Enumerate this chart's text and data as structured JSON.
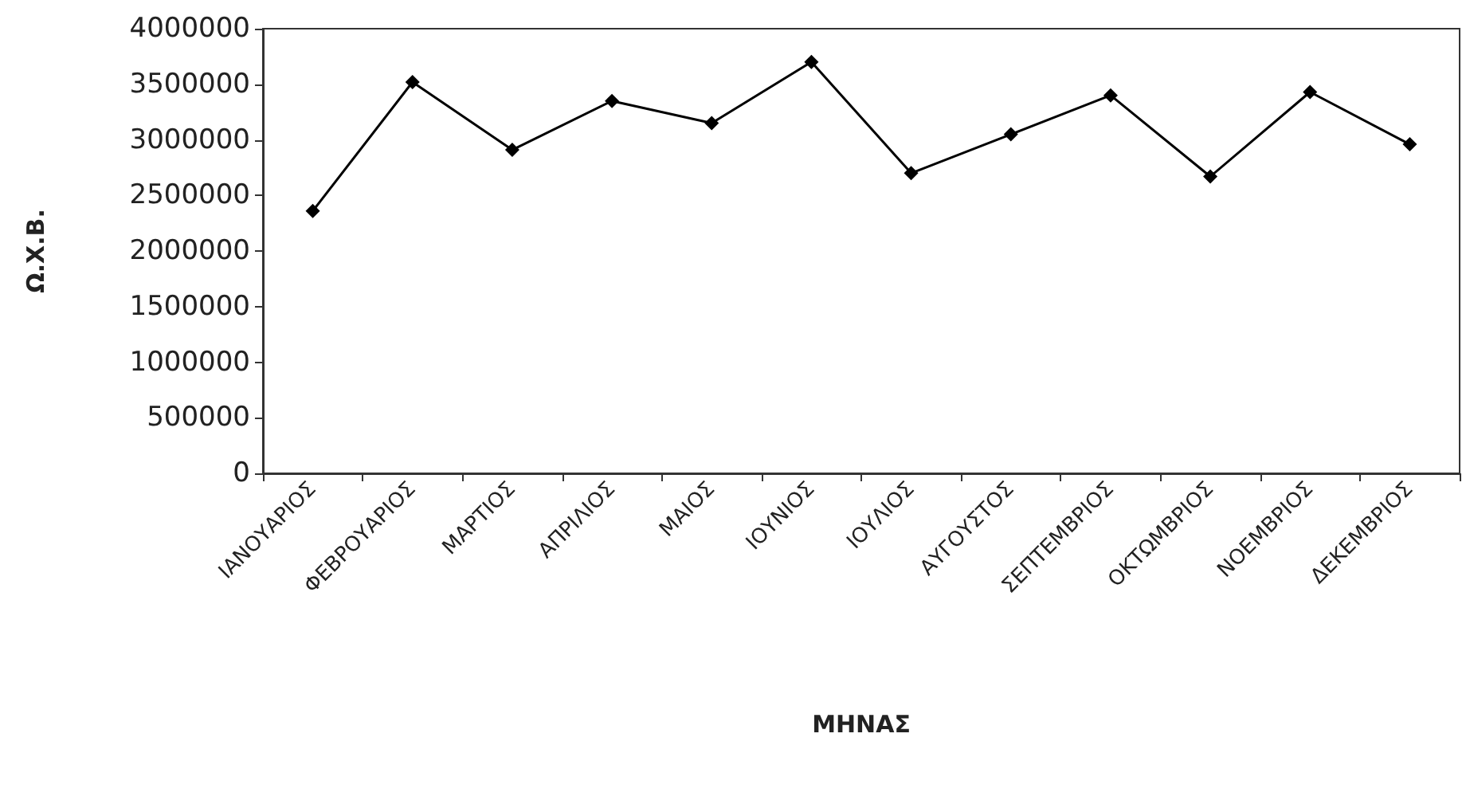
{
  "chart_data": {
    "type": "line",
    "xlabel": "ΜΗΝΑΣ",
    "ylabel": "Ω.Χ.Β.",
    "categories": [
      "ΙΑΝΟΥΑΡΙΟΣ",
      "ΦΕΒΡΟΥΑΡΙΟΣ",
      "ΜΑΡΤΙΟΣ",
      "ΑΠΡΙΛΙΟΣ",
      "ΜΑΙΟΣ",
      "ΙΟΥΝΙΟΣ",
      "ΙΟΥΛΙΟΣ",
      "ΑΥΓΟΥΣΤΟΣ",
      "ΣΕΠΤΕΜΒΡΙΟΣ",
      "ΟΚΤΩΜΒΡΙΟΣ",
      "ΝΟΕΜΒΡΙΟΣ",
      "ΔΕΚΕΜΒΡΙΟΣ"
    ],
    "series": [
      {
        "color": "#000000",
        "values": [
          2360000,
          3520000,
          2910000,
          3350000,
          3150000,
          3700000,
          2700000,
          3050000,
          3400000,
          2670000,
          3430000,
          2960000
        ]
      }
    ],
    "ylim": [
      0,
      4000000
    ],
    "yticks": [
      0,
      500000,
      1000000,
      1500000,
      2000000,
      2500000,
      3000000,
      3500000,
      4000000
    ],
    "grid": false,
    "marker": "diamond",
    "line_style": "solid"
  }
}
